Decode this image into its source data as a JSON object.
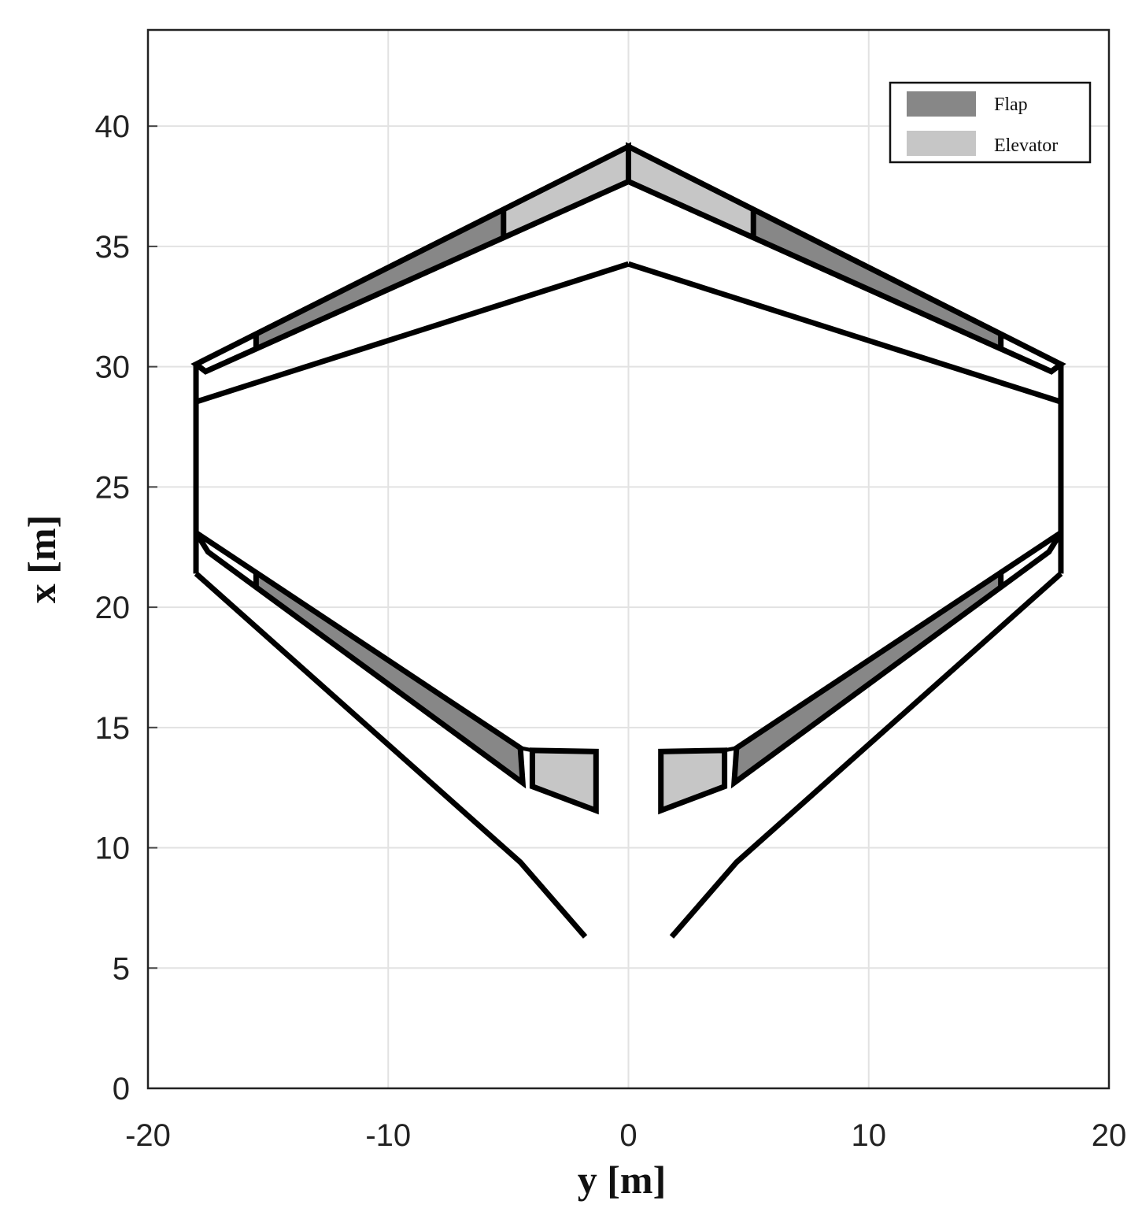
{
  "chart_data": {
    "type": "diagram",
    "xlabel": "y [m]",
    "ylabel": "x [m]",
    "xlim": [
      -20,
      20
    ],
    "ylim": [
      0,
      44
    ],
    "xticks": [
      -20,
      -10,
      0,
      10,
      20
    ],
    "yticks": [
      0,
      5,
      10,
      15,
      20,
      25,
      30,
      35,
      40
    ],
    "grid": true,
    "legend_position": "top-right",
    "legend": [
      {
        "label": "Flap",
        "color": "#878787"
      },
      {
        "label": "Elevator",
        "color": "#c6c6c6"
      }
    ],
    "symmetric_about_y0": true,
    "geometry_half": {
      "upper_band_outer": [
        [
          -18,
          30.1
        ],
        [
          0,
          39.15
        ]
      ],
      "upper_band_inner": [
        [
          -17.6,
          29.8
        ],
        [
          0,
          37.7
        ]
      ],
      "upper_aft_line": [
        [
          -18,
          28.54
        ],
        [
          0,
          34.27
        ]
      ],
      "side_edge": [
        [
          -18,
          30.1
        ],
        [
          -18,
          21.4
        ]
      ],
      "upper_flap_span": [
        -15.5,
        -5.2
      ],
      "upper_elevator_span": [
        -5.2,
        0
      ],
      "lower_band_outer": [
        [
          -18,
          23.1
        ],
        [
          -4.5,
          14.15
        ]
      ],
      "lower_band_inner": [
        [
          -17.5,
          22.3
        ],
        [
          -4.4,
          12.7
        ]
      ],
      "lower_flap_span": [
        -15.5,
        -4.5
      ],
      "lower_outer_line": [
        [
          -18,
          21.4
        ],
        [
          -4.5,
          9.4
        ],
        [
          -1.8,
          6.3
        ]
      ],
      "lower_elevator": [
        [
          -4.0,
          14.05
        ],
        [
          -1.35,
          14.0
        ],
        [
          -1.35,
          11.55
        ],
        [
          -4.0,
          12.55
        ]
      ]
    }
  }
}
